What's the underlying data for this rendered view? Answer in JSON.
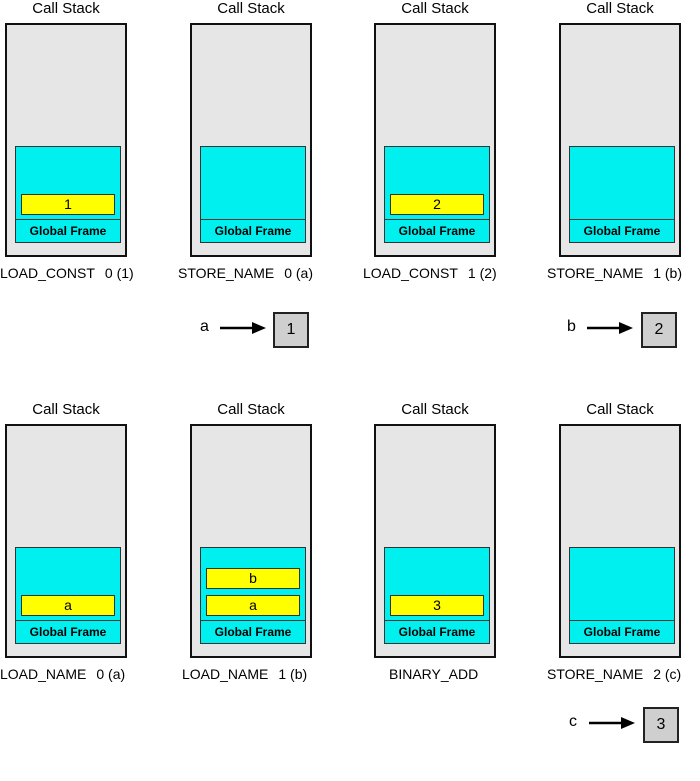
{
  "panels": [
    {
      "title": "Call Stack",
      "frame_label": "Global Frame",
      "cells": [
        "1"
      ],
      "op": "LOAD_CONST",
      "arg": "0 (1)"
    },
    {
      "title": "Call Stack",
      "frame_label": "Global Frame",
      "cells": [],
      "op": "STORE_NAME",
      "arg": "0 (a)"
    },
    {
      "title": "Call Stack",
      "frame_label": "Global Frame",
      "cells": [
        "2"
      ],
      "op": "LOAD_CONST",
      "arg": "1 (2)"
    },
    {
      "title": "Call Stack",
      "frame_label": "Global Frame",
      "cells": [],
      "op": "STORE_NAME",
      "arg": "1 (b)"
    },
    {
      "title": "Call Stack",
      "frame_label": "Global Frame",
      "cells": [
        "a"
      ],
      "op": "LOAD_NAME",
      "arg": "0 (a)"
    },
    {
      "title": "Call Stack",
      "frame_label": "Global Frame",
      "cells": [
        "b",
        "a"
      ],
      "op": "LOAD_NAME",
      "arg": "1 (b)"
    },
    {
      "title": "Call Stack",
      "frame_label": "Global Frame",
      "cells": [
        "3"
      ],
      "op": "BINARY_ADD",
      "arg": ""
    },
    {
      "title": "Call Stack",
      "frame_label": "Global Frame",
      "cells": [],
      "op": "STORE_NAME",
      "arg": "2 (c)"
    }
  ],
  "bindings": [
    {
      "name": "a",
      "value": "1"
    },
    {
      "name": "b",
      "value": "2"
    },
    {
      "name": "c",
      "value": "3"
    }
  ],
  "colors": {
    "stack_bg": "#e6e6e6",
    "frame_bg": "#00f0f0",
    "cell_bg": "#ffff00",
    "value_box_bg": "#cfcfcf"
  }
}
